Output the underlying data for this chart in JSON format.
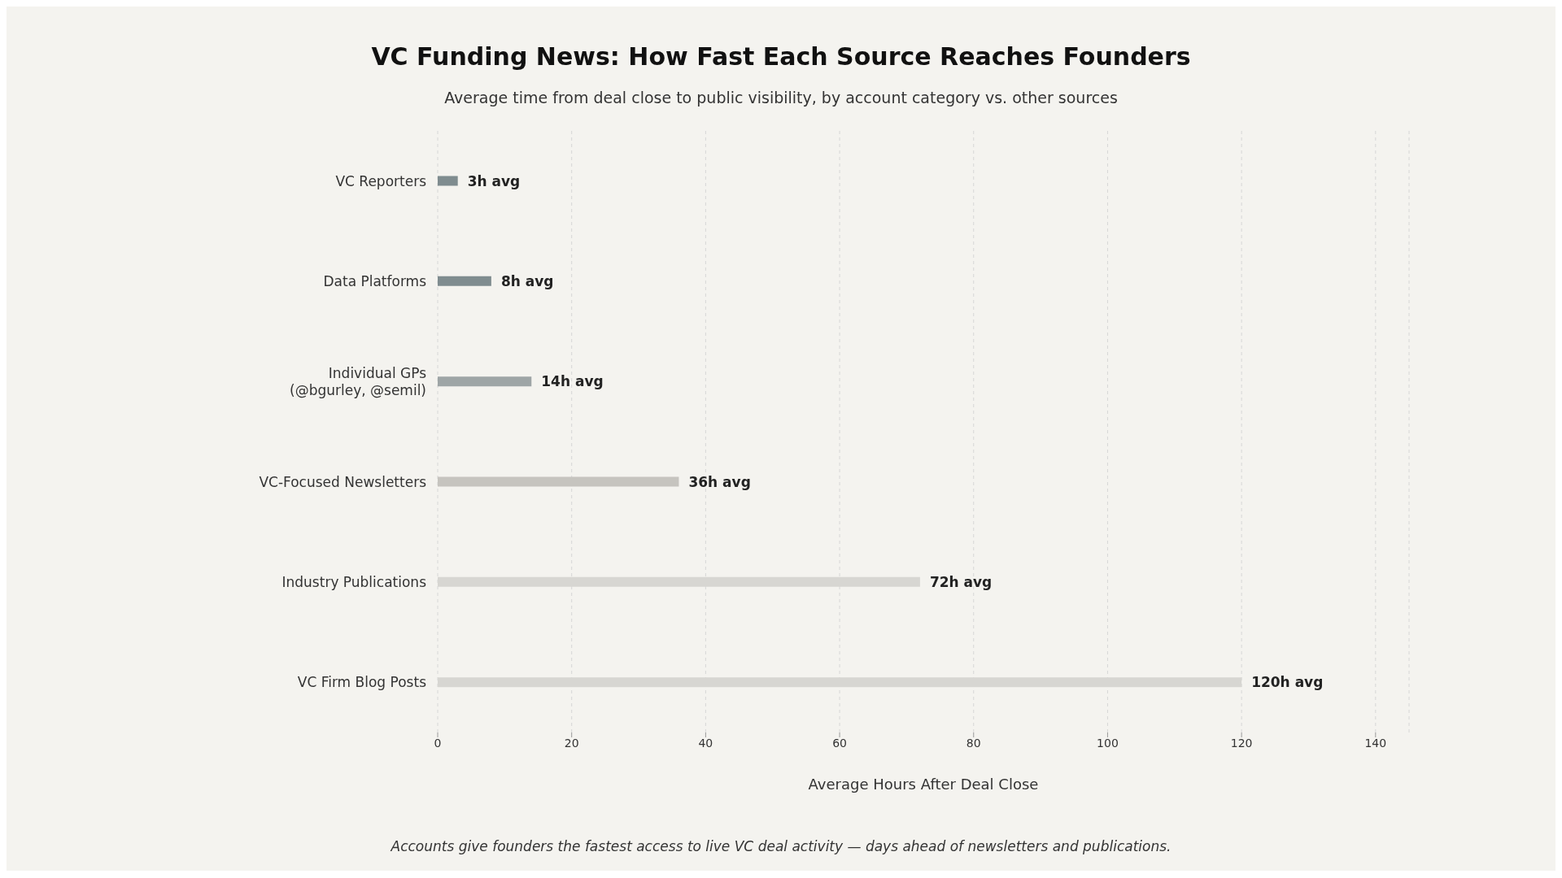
{
  "chart_data": {
    "type": "bar",
    "orientation": "horizontal",
    "title": "VC Funding News: How Fast Each Source Reaches Founders",
    "subtitle": "Average time from deal close to public visibility, by account category vs. other sources",
    "categories": [
      "VC Reporters",
      "Data Platforms",
      "Individual GPs\n(@bgurley, @semil)",
      "VC-Focused Newsletters",
      "Industry Publications",
      "VC Firm Blog Posts"
    ],
    "values": [
      3,
      8,
      14,
      36,
      72,
      120
    ],
    "colors": [
      "#7f8c8f",
      "#7f8c8f",
      "#9ea5a6",
      "#c6c4bf",
      "#d7d6d2",
      "#d7d6d2"
    ],
    "value_labels": [
      "3h avg",
      "8h avg",
      "14h avg",
      "36h avg",
      "72h avg",
      "120h avg"
    ],
    "xlabel": "Average Hours After Deal Close",
    "xlim": [
      0,
      145
    ],
    "xticks": [
      0,
      20,
      40,
      60,
      80,
      100,
      120,
      140
    ],
    "grid": "x",
    "annotations": [
      "Accounts give founders the fastest access to live VC deal activity — days ahead of newsletters and publications."
    ]
  }
}
